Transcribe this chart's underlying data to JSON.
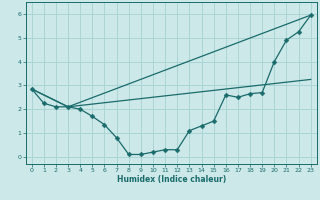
{
  "xlabel": "Humidex (Indice chaleur)",
  "bg_color": "#cce8e8",
  "grid_color": "#aad4d4",
  "line_color": "#1a6b6b",
  "xlim": [
    -0.5,
    23.5
  ],
  "ylim": [
    -0.3,
    6.5
  ],
  "xticks": [
    0,
    1,
    2,
    3,
    4,
    5,
    6,
    7,
    8,
    9,
    10,
    11,
    12,
    13,
    14,
    15,
    16,
    17,
    18,
    19,
    20,
    21,
    22,
    23
  ],
  "yticks": [
    0,
    1,
    2,
    3,
    4,
    5,
    6
  ],
  "line1_x": [
    0,
    1,
    2,
    3,
    4,
    5,
    6,
    7,
    8,
    9,
    10,
    11,
    12,
    13,
    14,
    15,
    16,
    17,
    18,
    19,
    20,
    21,
    22,
    23
  ],
  "line1_y": [
    2.85,
    2.25,
    2.1,
    2.1,
    2.0,
    1.7,
    1.35,
    0.8,
    0.1,
    0.1,
    0.2,
    0.3,
    0.3,
    1.1,
    1.3,
    1.5,
    2.6,
    2.5,
    2.65,
    2.7,
    4.0,
    4.9,
    5.25,
    5.95
  ],
  "line2_x": [
    0,
    3,
    23
  ],
  "line2_y": [
    2.85,
    2.1,
    5.95
  ],
  "line3_x": [
    0,
    3,
    23
  ],
  "line3_y": [
    2.85,
    2.1,
    3.25
  ],
  "markersize": 2.5
}
